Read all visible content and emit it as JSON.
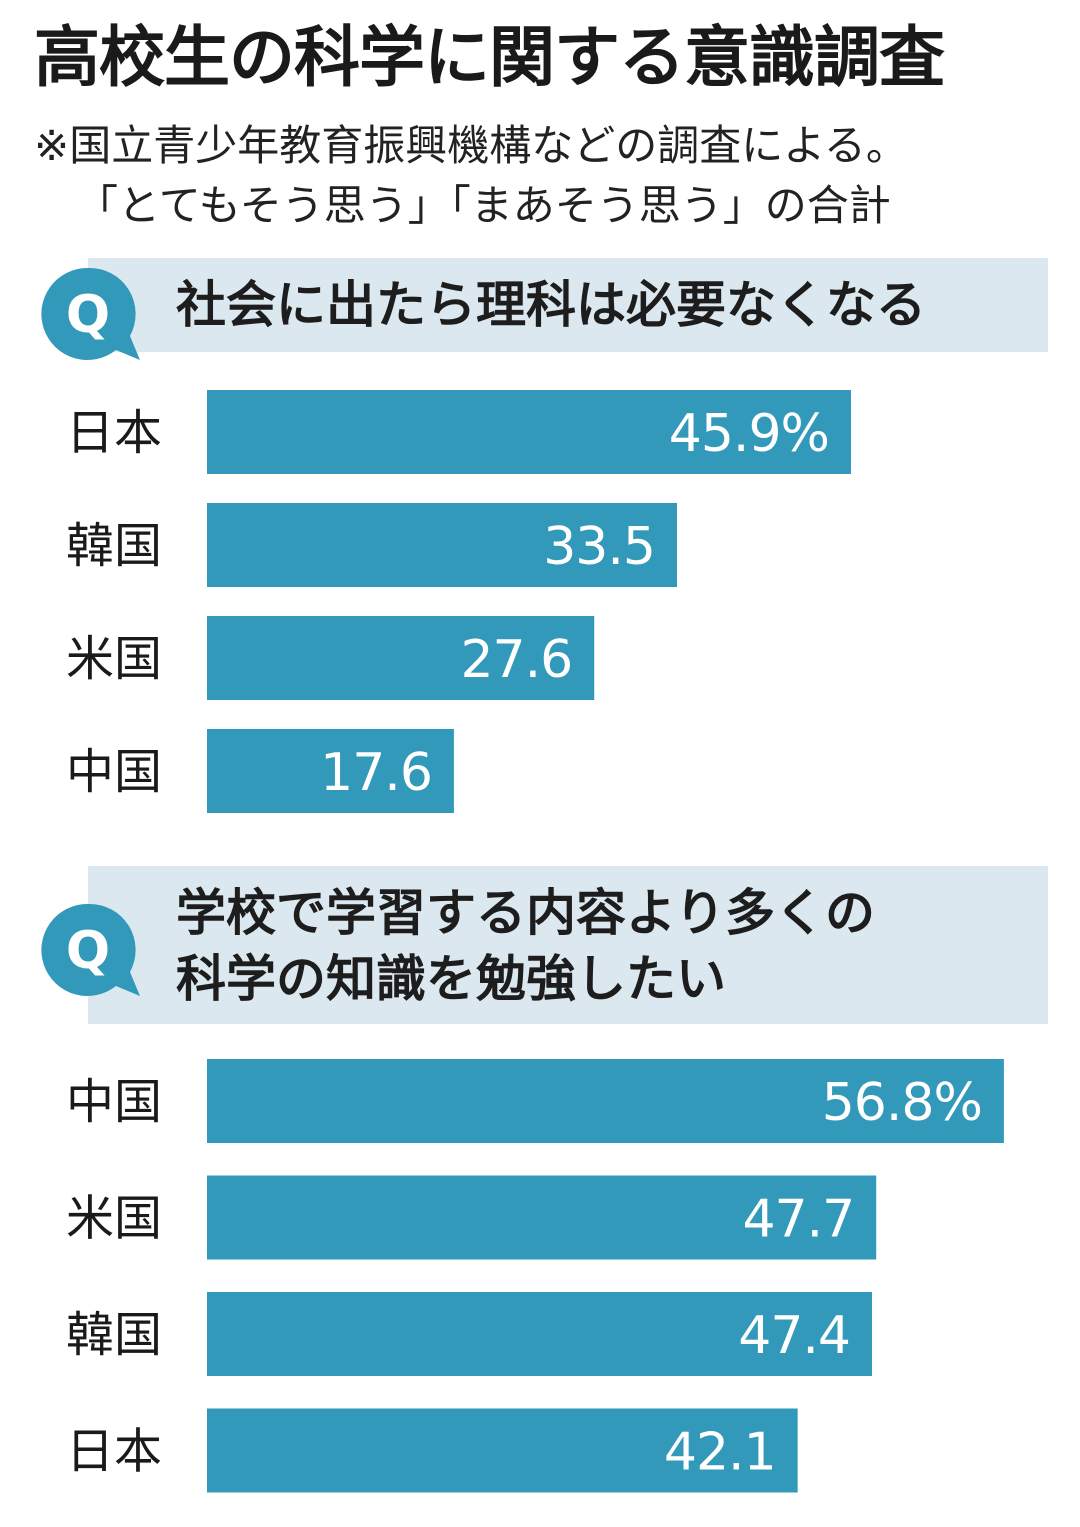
{
  "title": "高校生の科学に関する意識調査",
  "notes": [
    "※国立青少年教育振興機構などの調査による。",
    "「とてもそう思う」「まあそう思う」の合計"
  ],
  "colors": {
    "bar": "#3399bb",
    "question_bg": "#dbe8ef",
    "bubble": "#3399bb"
  },
  "icons": {
    "question": "q-speech-bubble-icon"
  },
  "chart_data": [
    {
      "type": "bar",
      "orientation": "horizontal",
      "title": "社会に出たら理科は必要なくなる",
      "title_lines": [
        "社会に出たら理科は必要なくなる"
      ],
      "unit": "%",
      "categories": [
        "日本",
        "韓国",
        "米国",
        "中国"
      ],
      "values": [
        45.9,
        33.5,
        27.6,
        17.6
      ],
      "value_labels": [
        "45.9%",
        "33.5",
        "27.6",
        "17.6"
      ]
    },
    {
      "type": "bar",
      "orientation": "horizontal",
      "title": "学校で学習する内容より多くの科学の知識を勉強したい",
      "title_lines": [
        "学校で学習する内容より多くの",
        "科学の知識を勉強したい"
      ],
      "unit": "%",
      "categories": [
        "中国",
        "米国",
        "韓国",
        "日本"
      ],
      "values": [
        56.8,
        47.7,
        47.4,
        42.1
      ],
      "value_labels": [
        "56.8%",
        "47.7",
        "47.4",
        "42.1"
      ]
    }
  ]
}
